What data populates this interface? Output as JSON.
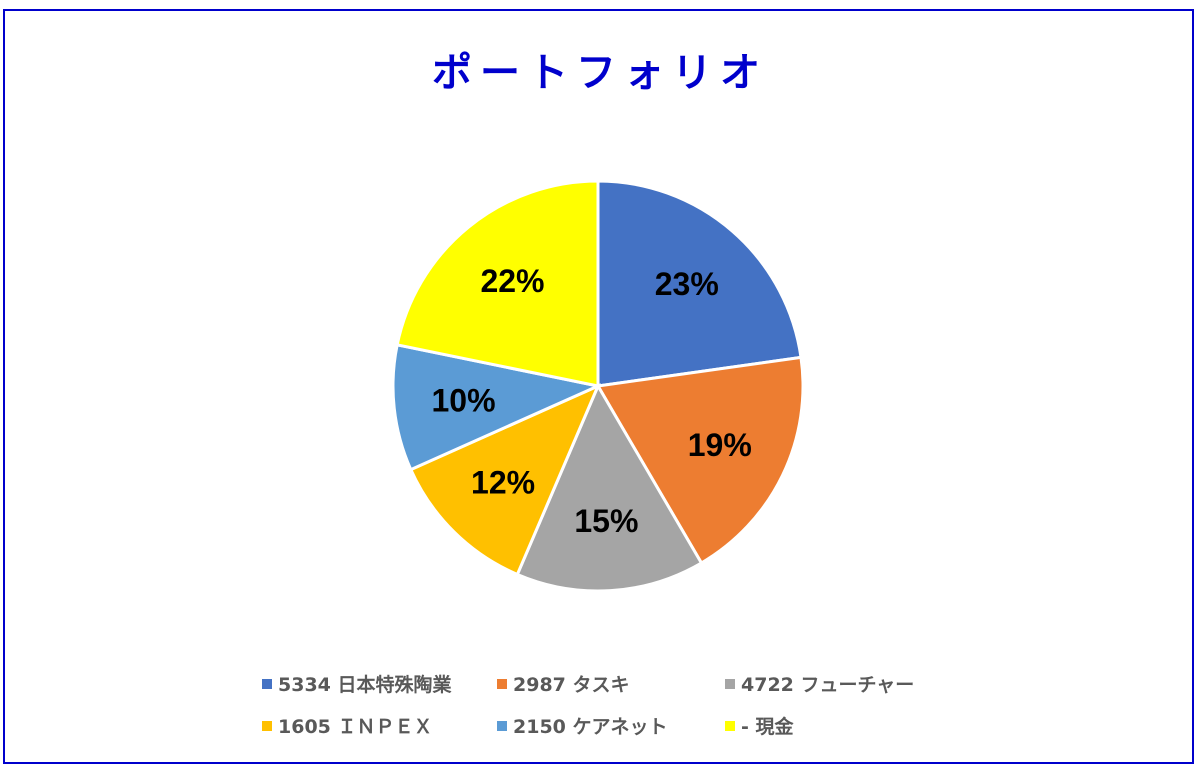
{
  "title": "ポートフォリオ",
  "colors": {
    "frame": "#0000cc",
    "title": "#0000cc",
    "legend_text": "#595959"
  },
  "chart_data": {
    "type": "pie",
    "title": "ポートフォリオ",
    "categories": [
      "5334 日本特殊陶業",
      "2987 タスキ",
      "4722 フューチャー",
      "1605 ＩＮＰＥＸ",
      "2150 ケアネット",
      "- 現金"
    ],
    "values": [
      23,
      19,
      15,
      12,
      10,
      22
    ],
    "labels": [
      "23%",
      "19%",
      "15%",
      "12%",
      "10%",
      "22%"
    ],
    "colors": [
      "#4472c4",
      "#ed7d31",
      "#a5a5a5",
      "#ffc000",
      "#5b9bd5",
      "#ffff00"
    ],
    "start_angle": "12 o'clock, clockwise",
    "legend_position": "bottom"
  },
  "legend": {
    "items": [
      {
        "label": "5334 日本特殊陶業",
        "color": "#4472c4"
      },
      {
        "label": "2987 タスキ",
        "color": "#ed7d31"
      },
      {
        "label": "4722 フューチャー",
        "color": "#a5a5a5"
      },
      {
        "label": "1605 ＩＮＰＥＸ",
        "color": "#ffc000"
      },
      {
        "label": "2150 ケアネット",
        "color": "#5b9bd5"
      },
      {
        "label": "- 現金",
        "color": "#ffff00"
      }
    ]
  }
}
